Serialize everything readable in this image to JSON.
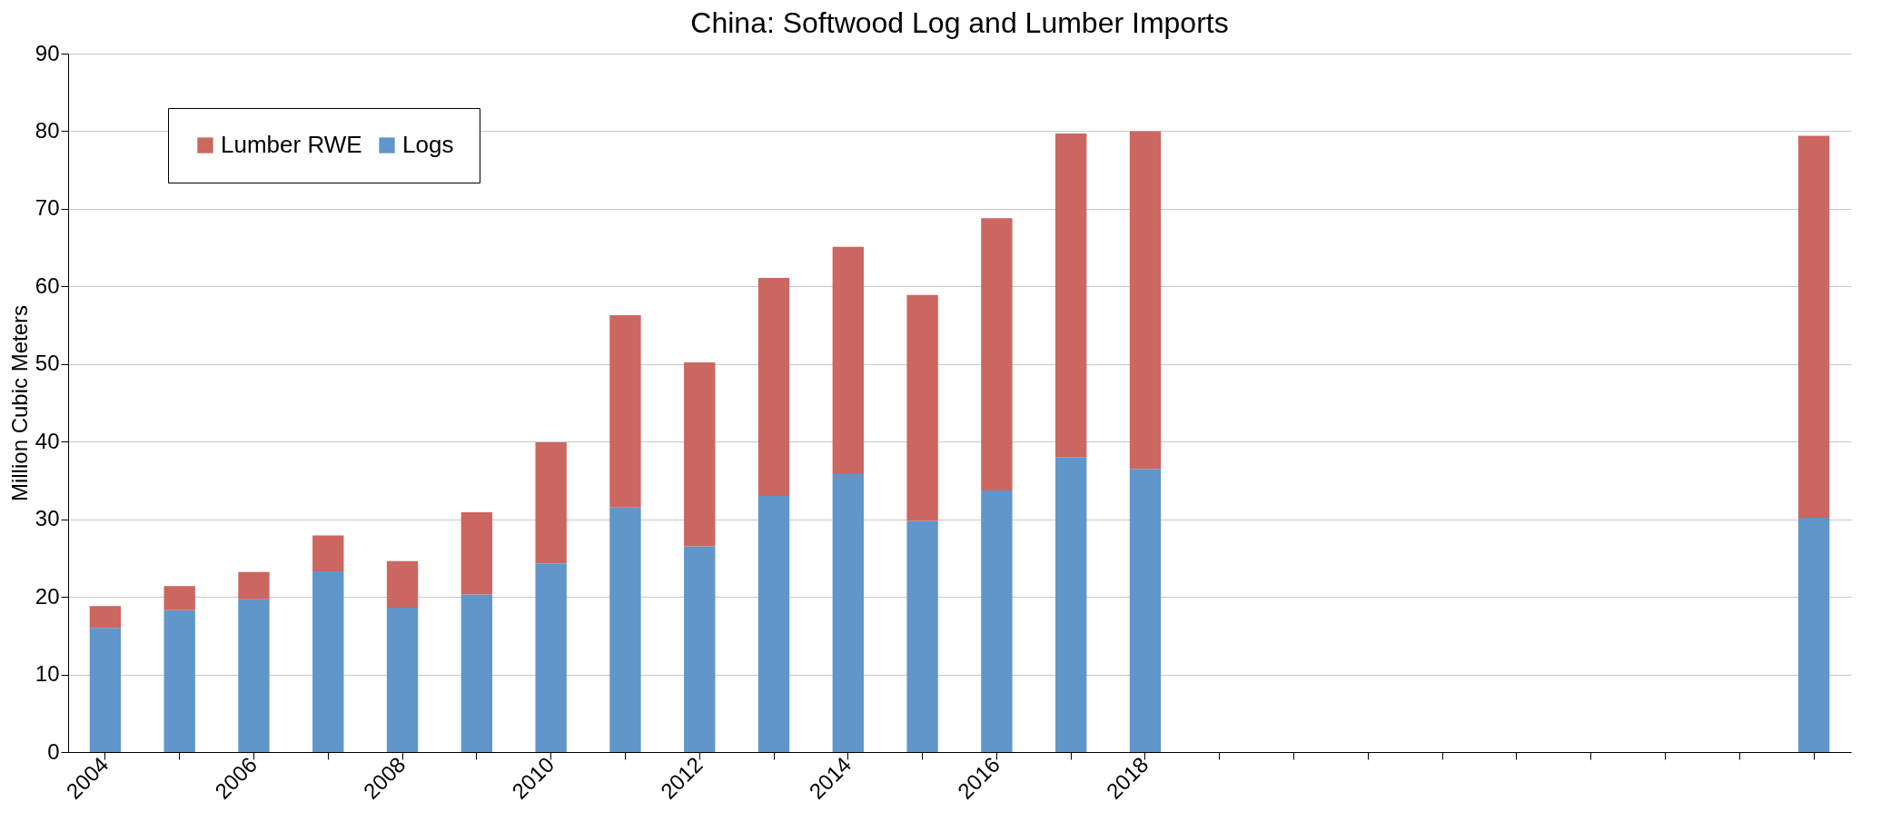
{
  "chart_data": {
    "type": "bar",
    "title": "China: Softwood Log and Lumber Imports",
    "ylabel": "Million Cubic Meters",
    "categories": [
      "2004",
      null,
      "2006",
      null,
      "2008",
      null,
      "2010",
      null,
      "2012",
      null,
      "2014",
      null,
      "2016",
      null,
      "2018",
      null,
      null,
      null,
      null,
      null,
      null,
      null,
      null,
      null
    ],
    "series": [
      {
        "name": "Logs",
        "color": "#6096c9",
        "values": [
          16,
          18.3,
          19.7,
          23.3,
          18.6,
          20.3,
          24.3,
          31.5,
          26.5,
          33,
          35.8,
          29.8,
          33.7,
          38,
          36.5,
          null,
          null,
          null,
          null,
          null,
          null,
          null,
          null,
          30.2
        ]
      },
      {
        "name": "Lumber RWE",
        "color": "#cc6660",
        "values": [
          2.8,
          3.1,
          3.5,
          4.6,
          6,
          10.6,
          15.6,
          24.8,
          23.7,
          28.1,
          29.3,
          29.1,
          35.1,
          41.7,
          43.5,
          null,
          null,
          null,
          null,
          null,
          null,
          null,
          null,
          49.2
        ]
      }
    ],
    "stacked": true,
    "ylim": [
      0,
      90
    ],
    "yticks": [
      0,
      10,
      20,
      30,
      40,
      50,
      60,
      70,
      80,
      90
    ],
    "grid": "y",
    "legend": "top left"
  }
}
